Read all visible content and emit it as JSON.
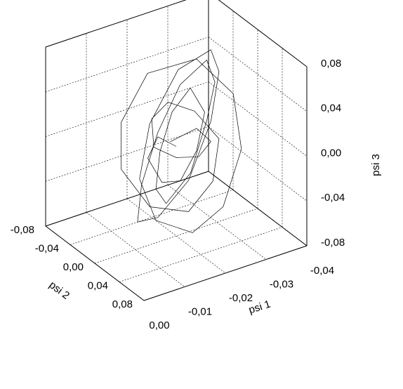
{
  "chart_data": {
    "type": "line3d",
    "xlabel": "psi 1",
    "ylabel": "psi 2",
    "zlabel": "psi 3",
    "xlim": [
      0,
      -0.04
    ],
    "ylim": [
      -0.08,
      0.08
    ],
    "zlim": [
      -0.08,
      0.08
    ],
    "xticks": [
      {
        "value": 0,
        "label": "0,00"
      },
      {
        "value": -0.01,
        "label": "-0,01"
      },
      {
        "value": -0.02,
        "label": "-0,02"
      },
      {
        "value": -0.03,
        "label": "-0,03"
      },
      {
        "value": -0.04,
        "label": "-0,04"
      }
    ],
    "yticks": [
      {
        "value": -0.08,
        "label": "-0,08"
      },
      {
        "value": -0.04,
        "label": "-0,04"
      },
      {
        "value": 0,
        "label": "0,00"
      },
      {
        "value": 0.04,
        "label": "0,04"
      },
      {
        "value": 0.08,
        "label": "0,08"
      }
    ],
    "zticks": [
      {
        "value": -0.08,
        "label": "-0,08"
      },
      {
        "value": -0.04,
        "label": "-0,04"
      },
      {
        "value": 0,
        "label": "0,00"
      },
      {
        "value": 0.04,
        "label": "0,04"
      },
      {
        "value": 0.08,
        "label": "0,08"
      }
    ],
    "grid": true,
    "series": [
      {
        "color": "#000000",
        "x": [
          -0.02,
          -0.014,
          -0.01,
          -0.012,
          -0.018,
          -0.025,
          -0.03,
          -0.028,
          -0.022,
          -0.016,
          -0.012,
          -0.013,
          -0.019,
          -0.026,
          -0.031,
          -0.032,
          -0.027,
          -0.02,
          -0.013,
          -0.009,
          -0.011,
          -0.017,
          -0.024,
          -0.029,
          -0.03,
          -0.025,
          -0.018,
          -0.014,
          -0.015,
          -0.021,
          -0.027,
          -0.033,
          -0.034,
          -0.028,
          -0.019,
          -0.011,
          -0.008,
          -0.012,
          -0.02,
          -0.026,
          -0.029,
          -0.026,
          -0.021,
          -0.017,
          -0.016,
          -0.02,
          -0.024,
          -0.027,
          -0.025,
          -0.02
        ],
        "y": [
          0.0,
          0.01,
          0.02,
          0.03,
          0.02,
          0.0,
          -0.02,
          -0.03,
          -0.02,
          0.0,
          0.02,
          0.03,
          0.03,
          0.01,
          -0.01,
          -0.03,
          -0.04,
          -0.03,
          -0.01,
          0.01,
          0.03,
          0.04,
          0.03,
          0.01,
          -0.01,
          -0.03,
          -0.03,
          -0.02,
          0.0,
          0.02,
          0.03,
          0.02,
          0.0,
          -0.02,
          -0.04,
          -0.03,
          -0.01,
          0.01,
          0.02,
          0.02,
          0.01,
          -0.01,
          -0.02,
          -0.02,
          -0.01,
          0.0,
          0.01,
          0.01,
          0.0,
          -0.01
        ],
        "z": [
          0.0,
          0.02,
          0.01,
          -0.01,
          -0.02,
          -0.01,
          0.01,
          0.03,
          0.02,
          0.0,
          -0.02,
          -0.03,
          -0.01,
          0.02,
          0.04,
          0.05,
          0.03,
          0.0,
          -0.03,
          -0.05,
          -0.04,
          -0.01,
          0.03,
          0.06,
          0.07,
          0.05,
          0.01,
          -0.03,
          -0.06,
          -0.07,
          -0.05,
          -0.01,
          0.03,
          0.06,
          0.05,
          0.02,
          -0.01,
          -0.04,
          -0.05,
          -0.03,
          0.0,
          0.02,
          0.03,
          0.02,
          0.0,
          -0.01,
          -0.01,
          0.0,
          0.01,
          0.0
        ]
      }
    ]
  }
}
